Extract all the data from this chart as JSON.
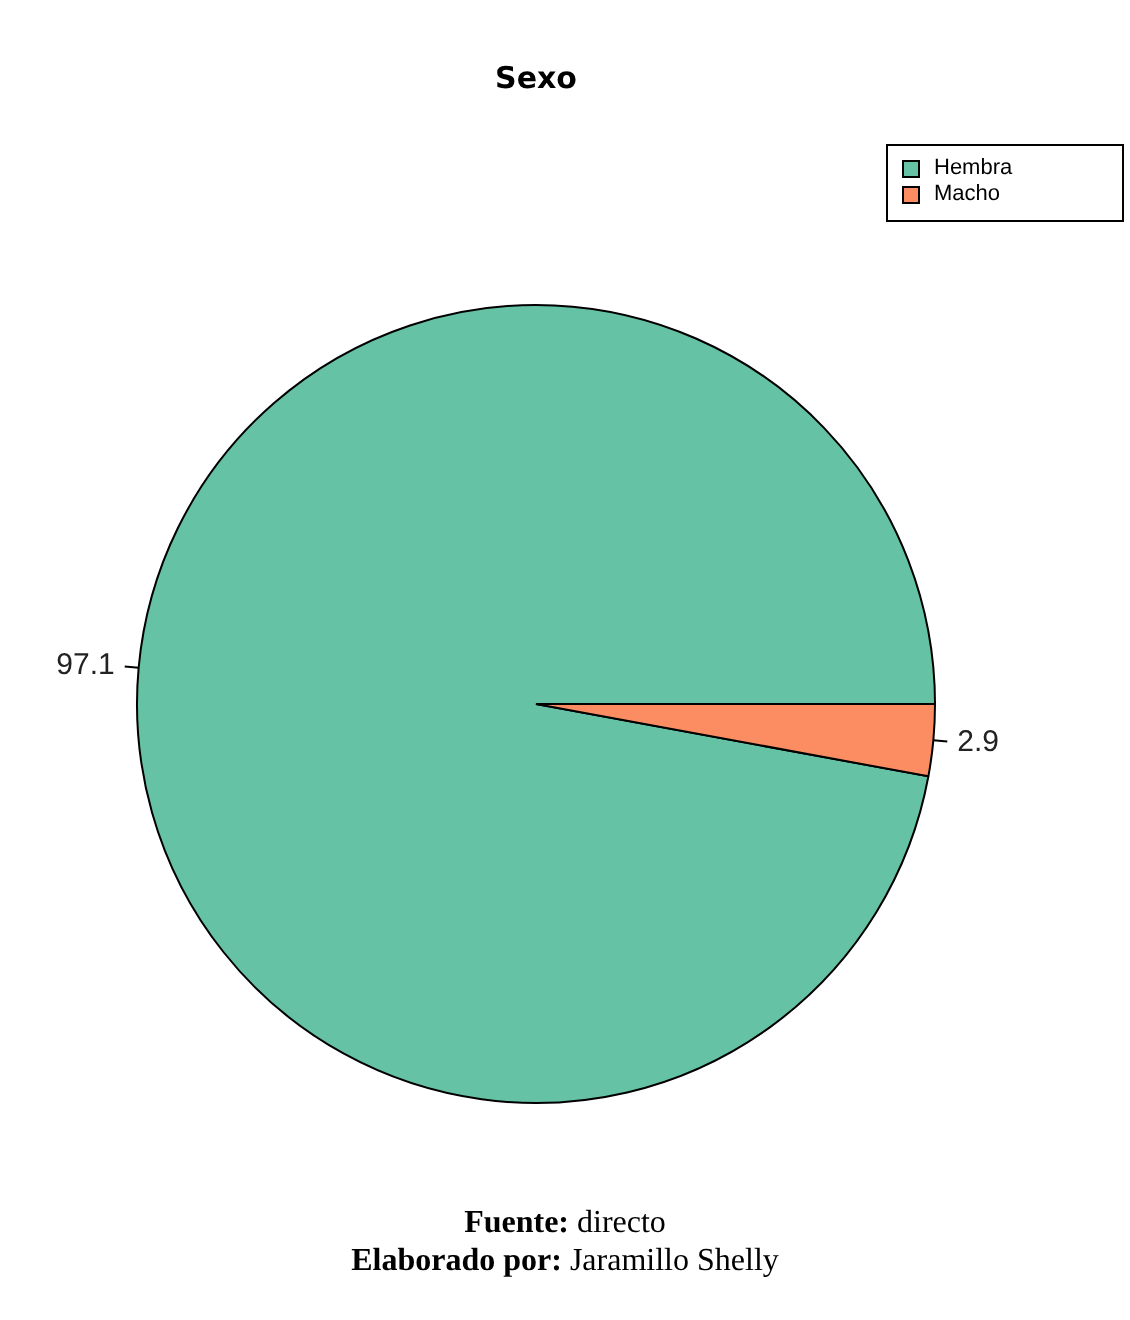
{
  "chart_data": {
    "type": "pie",
    "title": "Sexo",
    "categories": [
      "Hembra",
      "Macho"
    ],
    "values": [
      97.1,
      2.9
    ],
    "colors": [
      "#66c2a5",
      "#fc8d62"
    ],
    "data_labels": true,
    "legend": "top right",
    "annotations": [
      "Fuente: directo",
      "Elaborado por: Jaramillo Shelly"
    ]
  }
}
